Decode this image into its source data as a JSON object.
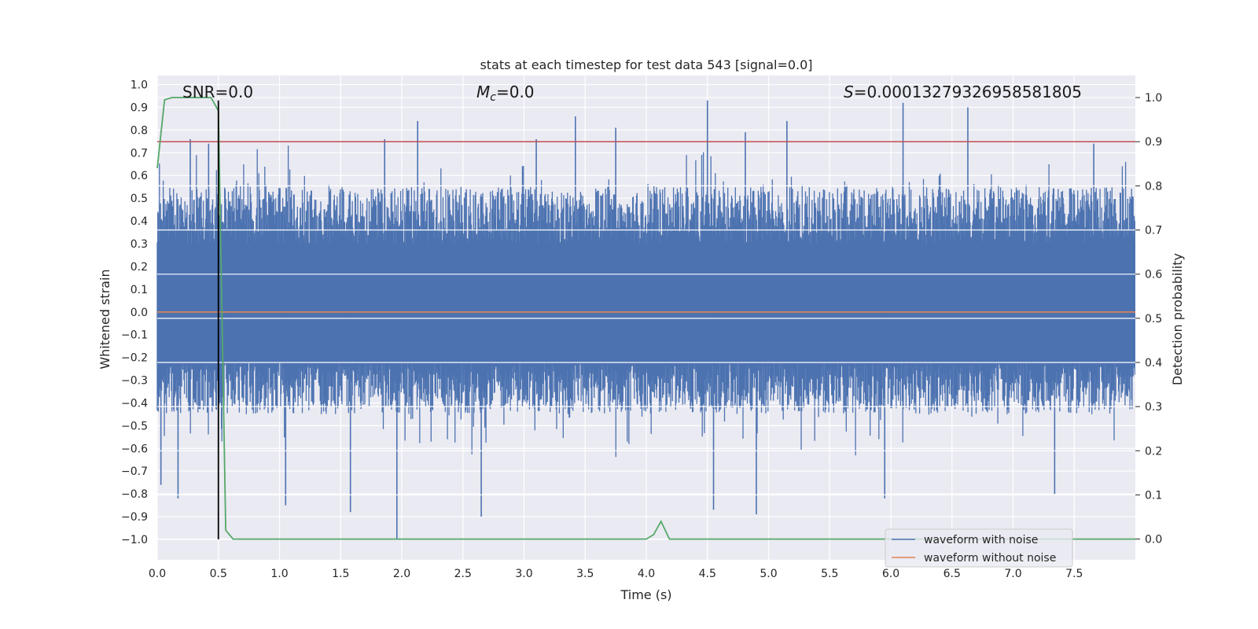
{
  "chart_data": {
    "type": "line",
    "title": "stats at each timestep for test data 543 [signal=0.0]",
    "xlabel": "Time (s)",
    "ylabel_left": "Whitened strain",
    "ylabel_right": "Detection probability",
    "xlim": [
      0.0,
      8.0
    ],
    "ylim_left": [
      -1.09,
      1.04
    ],
    "ylim_right": [
      -0.047,
      1.05
    ],
    "x_ticks": [
      "0.0",
      "0.5",
      "1.0",
      "1.5",
      "2.0",
      "2.5",
      "3.0",
      "3.5",
      "4.0",
      "4.5",
      "5.0",
      "5.5",
      "6.0",
      "6.5",
      "7.0",
      "7.5"
    ],
    "y_left_ticks": [
      "1.0",
      "0.9",
      "0.8",
      "0.7",
      "0.6",
      "0.5",
      "0.4",
      "0.3",
      "0.2",
      "0.1",
      "0.0",
      "-0.1",
      "-0.2",
      "-0.3",
      "-0.4",
      "-0.5",
      "-0.6",
      "-0.7",
      "-0.8",
      "-0.9",
      "-1.0"
    ],
    "y_right_ticks": [
      "1.0",
      "0.9",
      "0.8",
      "0.7",
      "0.6",
      "0.5",
      "0.4",
      "0.3",
      "0.2",
      "0.1",
      "0.0"
    ],
    "annotations": {
      "snr": "SNR=0.0",
      "mc_sym": "M",
      "mc_sub": "c",
      "mc_val": "=0.0",
      "s_sym": "S",
      "s_val": "=0.00013279326958581805"
    },
    "series": [
      {
        "name": "waveform with noise",
        "color": "#4c72b0",
        "axis": "left",
        "description": "whitened noise, fills roughly -0.45 to 0.55 with spikes up to 0.93 and down to -1.0",
        "envelope_top": 0.55,
        "envelope_bottom": -0.45,
        "spikes": [
          {
            "t": 0.03,
            "v": -0.76
          },
          {
            "t": 0.17,
            "v": -0.82
          },
          {
            "t": 0.27,
            "v": 0.76
          },
          {
            "t": 0.42,
            "v": 0.74
          },
          {
            "t": 1.05,
            "v": -0.85
          },
          {
            "t": 1.58,
            "v": -0.88
          },
          {
            "t": 1.86,
            "v": 0.76
          },
          {
            "t": 1.96,
            "v": -1.0
          },
          {
            "t": 2.13,
            "v": 0.84
          },
          {
            "t": 2.65,
            "v": -0.9
          },
          {
            "t": 3.1,
            "v": 0.76
          },
          {
            "t": 3.42,
            "v": 0.86
          },
          {
            "t": 3.75,
            "v": 0.81
          },
          {
            "t": 4.5,
            "v": 0.93
          },
          {
            "t": 4.55,
            "v": -0.87
          },
          {
            "t": 4.81,
            "v": 0.79
          },
          {
            "t": 4.9,
            "v": -0.89
          },
          {
            "t": 5.15,
            "v": 0.84
          },
          {
            "t": 5.95,
            "v": -0.82
          },
          {
            "t": 6.1,
            "v": 0.92
          },
          {
            "t": 6.63,
            "v": 0.9
          },
          {
            "t": 7.34,
            "v": -0.8
          },
          {
            "t": 7.66,
            "v": 0.74
          }
        ]
      },
      {
        "name": "waveform without noise",
        "color": "#dd8452",
        "axis": "left",
        "x": [
          0.0,
          8.0
        ],
        "y": [
          0.0,
          0.0
        ]
      },
      {
        "name": "detection probability",
        "color": "#55a868",
        "axis": "right",
        "x": [
          0.0,
          0.06,
          0.12,
          0.44,
          0.5,
          0.56,
          0.62,
          1.0,
          2.0,
          3.0,
          4.0,
          4.06,
          4.12,
          4.19,
          5.0,
          6.0,
          7.0,
          8.0
        ],
        "y": [
          0.84,
          0.995,
          1.0,
          1.0,
          0.97,
          0.02,
          0.0,
          0.0,
          0.0,
          0.0,
          0.0,
          0.01,
          0.04,
          0.0,
          0.0,
          0.0,
          0.0,
          0.0
        ]
      }
    ],
    "hlines": [
      {
        "axis": "right",
        "value": 0.9,
        "color": "#c44e52"
      }
    ],
    "vlines": [
      {
        "axis": "left",
        "x": 0.5,
        "from": -1.0,
        "to": 0.93,
        "color": "#000000"
      }
    ],
    "legend": {
      "placement": "lower-right",
      "entries": [
        {
          "label": "waveform with noise",
          "color": "#4c72b0"
        },
        {
          "label": "waveform without noise",
          "color": "#dd8452"
        }
      ]
    },
    "style": {
      "background": "#eaeaf2",
      "grid_color": "#ffffff"
    }
  }
}
